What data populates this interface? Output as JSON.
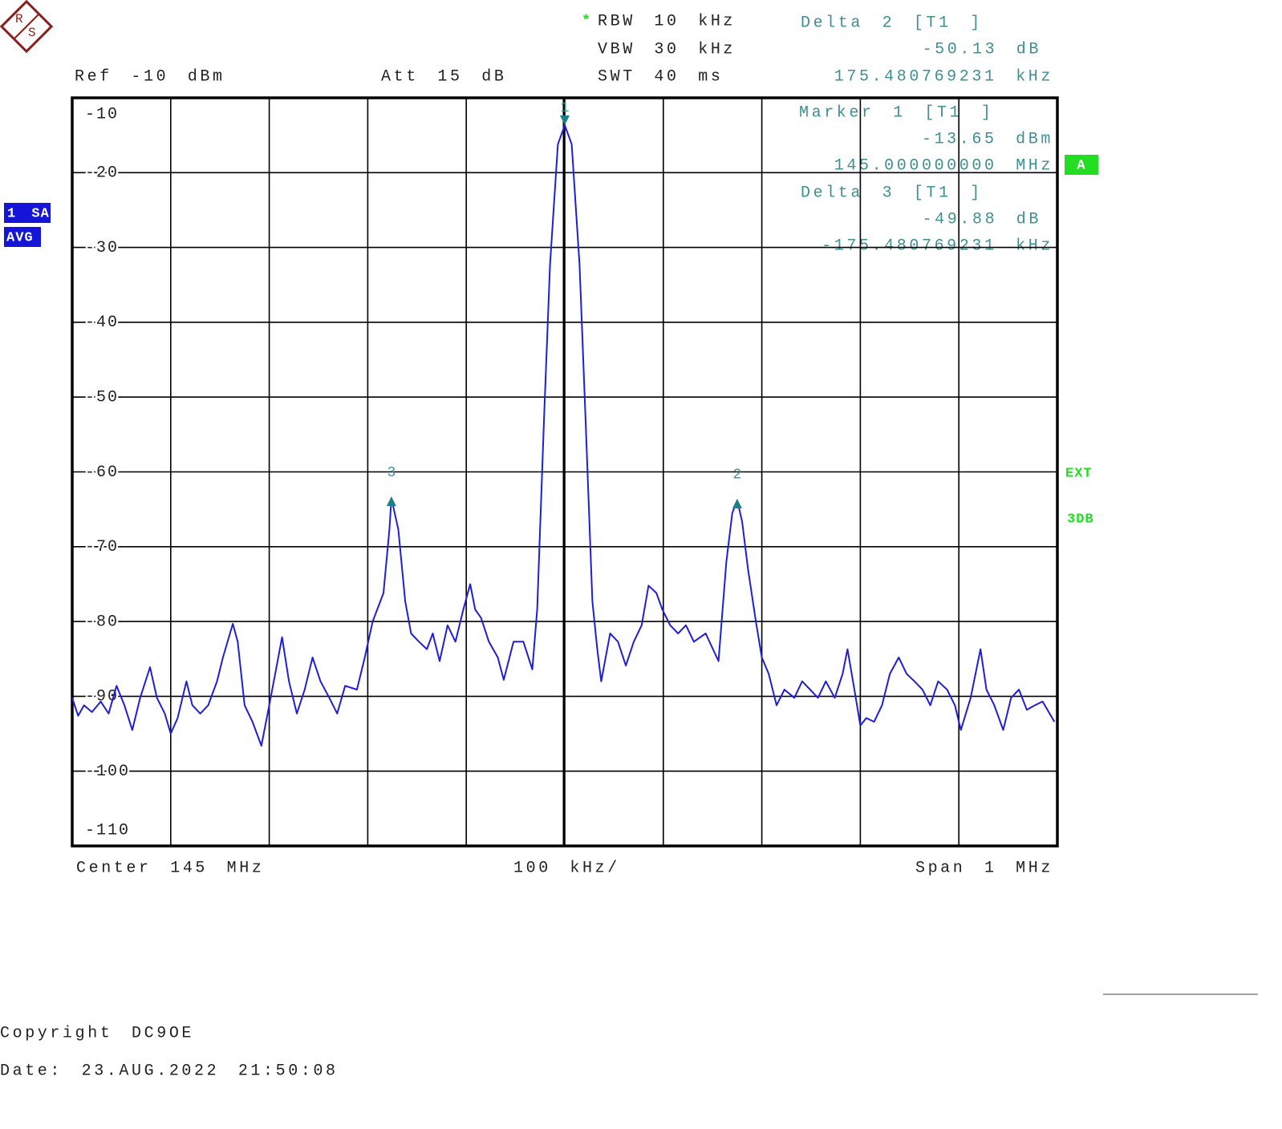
{
  "logo": [
    "R",
    "S"
  ],
  "header": {
    "rbw_star": "*",
    "rbw": "RBW 10 kHz",
    "vbw": "VBW 30 kHz",
    "swt": "SWT 40 ms",
    "ref": "Ref -10 dBm",
    "att": "Att 15 dB"
  },
  "readouts": [
    {
      "title": "Delta 2 [T1 ]",
      "level": "-50.13 dB",
      "freq": "175.480769231 kHz"
    },
    {
      "title": "Marker 1 [T1 ]",
      "level": "-13.65 dBm",
      "freq": "145.000000000 MHz"
    },
    {
      "title": "Delta 3 [T1 ]",
      "level": "-49.88 dB",
      "freq": "-175.480769231 kHz"
    }
  ],
  "badges": {
    "trace": "1 SA",
    "mode": "AVG",
    "screen": "A",
    "ext": "EXT",
    "db": "3DB"
  },
  "footer": {
    "center": "Center 145 MHz",
    "div": "100 kHz/",
    "span": "Span 1 MHz",
    "copyright": "Copyright DC9OE",
    "date": "Date: 23.AUG.2022 21:50:08"
  },
  "chart_data": {
    "type": "line",
    "color": "#1f1fd6",
    "grid": true,
    "xtick_labels": false,
    "xlim": [
      144.5,
      145.5
    ],
    "xticks": [
      144.5,
      144.6,
      144.7,
      144.8,
      144.9,
      145.0,
      145.1,
      145.2,
      145.3,
      145.4,
      145.5
    ],
    "ylim": [
      -110,
      -10
    ],
    "yticks": [
      -10,
      -20,
      -30,
      -40,
      -50,
      -60,
      -70,
      -80,
      -90,
      -100,
      -110
    ],
    "x": [
      144.5,
      144.506,
      144.512,
      144.52,
      144.529,
      144.537,
      144.545,
      144.553,
      144.561,
      144.569,
      144.579,
      144.586,
      144.594,
      144.6,
      144.607,
      144.616,
      144.622,
      144.63,
      144.638,
      144.647,
      144.653,
      144.663,
      144.668,
      144.675,
      144.683,
      144.692,
      144.7,
      144.706,
      144.713,
      144.72,
      144.728,
      144.736,
      144.744,
      144.752,
      144.761,
      144.769,
      144.777,
      144.789,
      144.797,
      144.805,
      144.816,
      144.822,
      144.824,
      144.831,
      144.838,
      144.844,
      144.852,
      144.86,
      144.866,
      144.873,
      144.881,
      144.889,
      144.897,
      144.904,
      144.909,
      144.915,
      144.923,
      144.932,
      144.938,
      144.948,
      144.958,
      144.967,
      144.972,
      144.979,
      144.985,
      144.993,
      145.0,
      145.007,
      145.015,
      145.021,
      145.028,
      145.033,
      145.037,
      145.046,
      145.054,
      145.062,
      145.07,
      145.078,
      145.085,
      145.093,
      145.099,
      145.107,
      145.115,
      145.123,
      145.131,
      145.143,
      145.156,
      145.164,
      145.17,
      145.175,
      145.18,
      145.186,
      145.194,
      145.2,
      145.207,
      145.215,
      145.223,
      145.233,
      145.241,
      145.249,
      145.257,
      145.265,
      145.274,
      145.282,
      145.287,
      145.294,
      145.3,
      145.306,
      145.314,
      145.322,
      145.33,
      145.339,
      145.347,
      145.355,
      145.363,
      145.371,
      145.379,
      145.388,
      145.396,
      145.402,
      145.412,
      145.422,
      145.428,
      145.436,
      145.445,
      145.453,
      145.461,
      145.469,
      145.477,
      145.485,
      145.497
    ],
    "values": [
      -90.2,
      -92.6,
      -91.2,
      -92.1,
      -90.7,
      -92.3,
      -88.6,
      -91.2,
      -94.5,
      -90.2,
      -86.1,
      -90.2,
      -92.3,
      -95.0,
      -92.9,
      -88.0,
      -91.2,
      -92.3,
      -91.2,
      -88.0,
      -84.8,
      -80.3,
      -82.7,
      -91.2,
      -93.4,
      -96.6,
      -91.2,
      -87.0,
      -82.1,
      -88.0,
      -92.3,
      -89.1,
      -84.8,
      -88.0,
      -90.2,
      -92.3,
      -88.6,
      -89.1,
      -84.8,
      -80.0,
      -76.2,
      -67.7,
      -63.5,
      -67.7,
      -77.3,
      -81.6,
      -82.7,
      -83.7,
      -81.6,
      -85.3,
      -80.5,
      -82.7,
      -78.4,
      -75.0,
      -78.4,
      -79.5,
      -82.7,
      -84.8,
      -87.8,
      -82.7,
      -82.7,
      -86.4,
      -78.4,
      -52.7,
      -32.3,
      -16.2,
      -13.65,
      -16.2,
      -32.3,
      -52.7,
      -77.3,
      -83.7,
      -88.0,
      -81.6,
      -82.7,
      -85.9,
      -82.7,
      -80.5,
      -75.2,
      -76.2,
      -78.4,
      -80.5,
      -81.6,
      -80.5,
      -82.7,
      -81.6,
      -85.3,
      -72.0,
      -65.5,
      -63.8,
      -66.6,
      -73.0,
      -80.0,
      -84.8,
      -87.0,
      -91.2,
      -89.1,
      -90.2,
      -88.0,
      -89.1,
      -90.2,
      -88.0,
      -90.2,
      -87.0,
      -83.7,
      -89.1,
      -93.9,
      -92.9,
      -93.4,
      -91.2,
      -87.0,
      -84.8,
      -87.0,
      -88.0,
      -89.1,
      -91.2,
      -88.0,
      -89.1,
      -91.2,
      -94.5,
      -90.2,
      -83.7,
      -89.1,
      -91.2,
      -94.5,
      -90.2,
      -89.1,
      -91.8,
      -91.2,
      -90.7,
      -93.4
    ],
    "markers": [
      {
        "label": "1",
        "x": 145.0,
        "y": -13.65,
        "dir": "down"
      },
      {
        "label": "2",
        "x": 145.175,
        "y": -63.8,
        "dir": "up"
      },
      {
        "label": "3",
        "x": 144.824,
        "y": -63.5,
        "dir": "up"
      }
    ]
  }
}
